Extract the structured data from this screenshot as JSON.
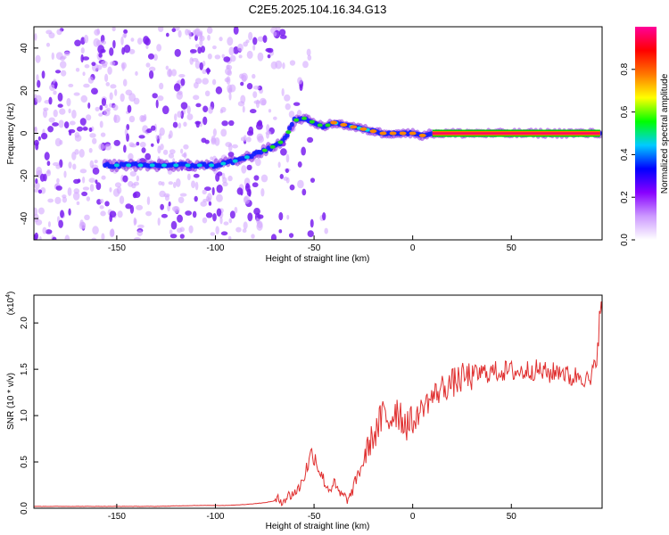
{
  "title": "C2E5.2025.104.16.34.G13",
  "chart_data": [
    {
      "type": "heatmap",
      "xlabel": "Height of straight line (km)",
      "ylabel": "Frequency (Hz)",
      "xlim": [
        -192,
        96
      ],
      "ylim": [
        -50,
        50
      ],
      "xticks": [
        -150,
        -100,
        -50,
        0,
        50
      ],
      "yticks": [
        -40,
        -20,
        0,
        20,
        40
      ],
      "colorbar": {
        "label": "Normalized spectral amplitude",
        "range": [
          0,
          1
        ],
        "ticks": [
          0.0,
          0.2,
          0.4,
          0.6,
          0.8
        ],
        "tick_labels": [
          "0.0",
          "0.2",
          "0.4",
          "0.6",
          "0.8"
        ],
        "colors": [
          "#ffffff",
          "#cc99ff",
          "#8800ff",
          "#0000ff",
          "#00ccff",
          "#00ff00",
          "#ffff00",
          "#ff7700",
          "#ff0000",
          "#ff0099"
        ]
      },
      "ridge": {
        "x": [
          -155,
          -140,
          -125,
          -110,
          -100,
          -90,
          -80,
          -70,
          -65,
          -60,
          -55,
          -50,
          -45,
          -40,
          -35,
          -30,
          -25,
          -20,
          -15,
          -10,
          -5,
          0,
          5,
          10,
          20,
          40,
          60,
          80,
          95
        ],
        "y": [
          -15,
          -15,
          -15,
          -15,
          -15,
          -13,
          -10,
          -6,
          -3,
          6,
          7,
          5,
          3,
          5,
          4,
          3,
          2,
          1,
          0,
          0,
          0,
          0,
          -1,
          0,
          0,
          0,
          0,
          0,
          0
        ]
      },
      "grid": false
    },
    {
      "type": "line",
      "xlabel": "Height of straight line (km)",
      "ylabel": "SNR (10 * v/v)",
      "yscale_label": "(x10",
      "yscale_exponent": "4",
      "xlim": [
        -192,
        96
      ],
      "ylim": [
        0,
        2.3
      ],
      "xticks": [
        -150,
        -100,
        -50,
        0,
        50
      ],
      "yticks": [
        0.0,
        0.5,
        1.0,
        1.5,
        2.0
      ],
      "ytick_labels": [
        "0.0",
        "0.5",
        "1.0",
        "1.5",
        "2.0"
      ],
      "series": [
        {
          "color": "#e03030",
          "x": [
            -192,
            -170,
            -150,
            -130,
            -110,
            -95,
            -85,
            -75,
            -65,
            -58,
            -55,
            -52,
            -50,
            -48,
            -46,
            -44,
            -42,
            -40,
            -38,
            -35,
            -32,
            -28,
            -25,
            -22,
            -18,
            -15,
            -12,
            -8,
            -5,
            0,
            5,
            10,
            15,
            20,
            25,
            30,
            35,
            40,
            45,
            50,
            55,
            60,
            65,
            70,
            75,
            80,
            85,
            90,
            93,
            95
          ],
          "y": [
            0.02,
            0.02,
            0.02,
            0.02,
            0.03,
            0.03,
            0.04,
            0.06,
            0.1,
            0.2,
            0.35,
            0.55,
            0.6,
            0.45,
            0.35,
            0.25,
            0.2,
            0.28,
            0.18,
            0.12,
            0.1,
            0.35,
            0.5,
            0.7,
            0.85,
            1.0,
            0.95,
            1.1,
            0.95,
            0.9,
            1.1,
            1.2,
            1.3,
            1.35,
            1.4,
            1.43,
            1.46,
            1.47,
            1.48,
            1.48,
            1.47,
            1.5,
            1.48,
            1.45,
            1.5,
            1.4,
            1.45,
            1.35,
            1.6,
            2.1
          ]
        }
      ],
      "grid": false
    }
  ]
}
